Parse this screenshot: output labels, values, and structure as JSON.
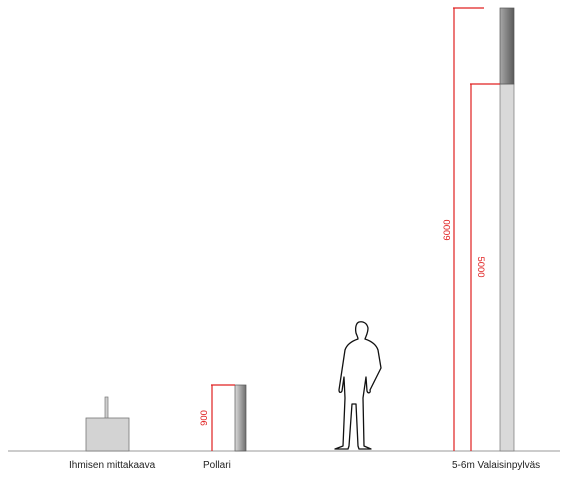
{
  "captions": {
    "scale": "Ihmisen mittakaava",
    "bollard": "Pollari",
    "pole": "5-6m Valaisinpylväs"
  },
  "dimensions": {
    "bollard_height": "900",
    "pole_6m": "6000",
    "pole_5m": "5000"
  },
  "colors": {
    "dimension_line": "#e02020",
    "ground": "#9a9a9a",
    "object_fill": "#d6d6d6"
  }
}
